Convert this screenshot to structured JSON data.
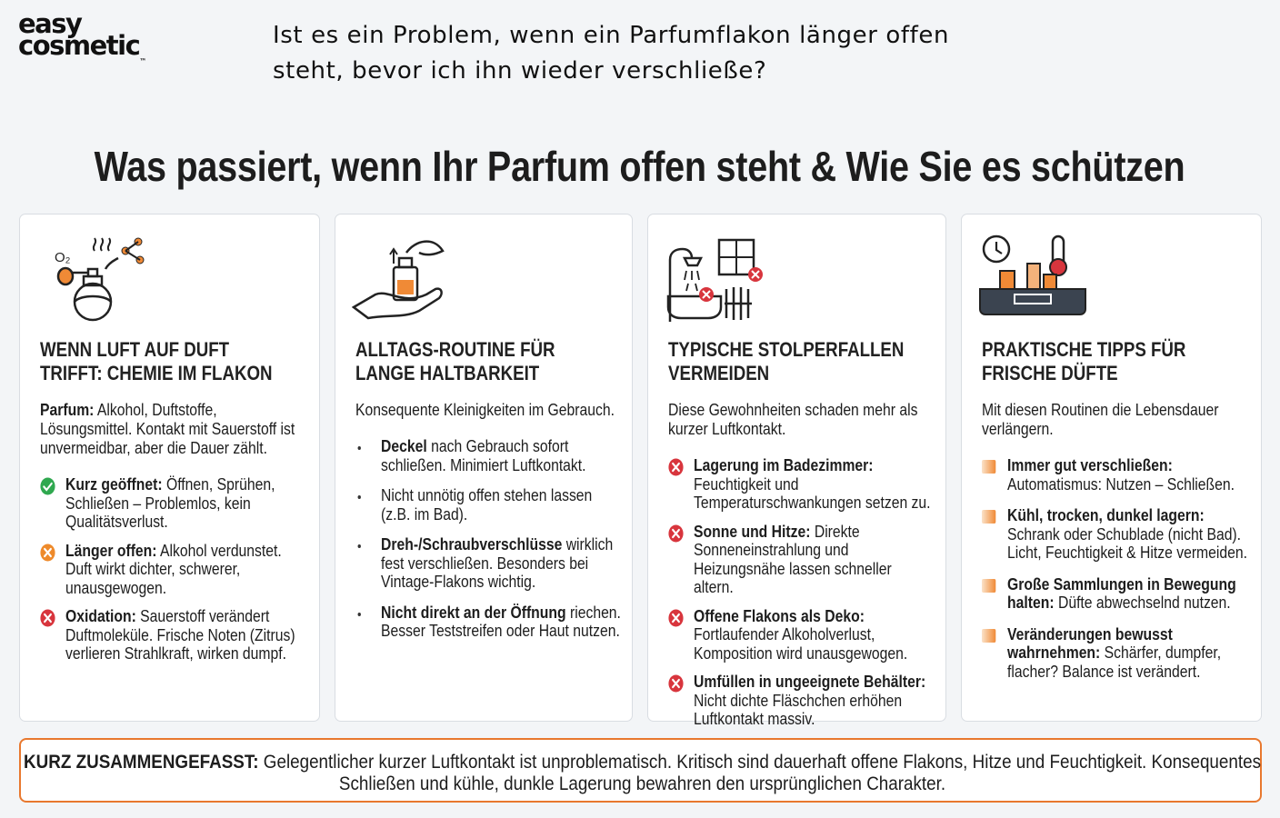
{
  "logo": {
    "line1": "easy",
    "line2": "cosmetic",
    "tm": "™"
  },
  "question": [
    "Ist es ein Problem, wenn ein Parfumflakon länger offen",
    "steht, bevor ich ihn wieder verschließe?"
  ],
  "title": "Was passiert, wenn Ihr Parfum offen steht & Wie Sie es schützen",
  "cards": [
    {
      "icon_label": "O₂",
      "heading": [
        "WENN LUFT AUF DUFT",
        "TRIFFT: CHEMIE IM FLAKON"
      ],
      "intro": {
        "bold": "Parfum:",
        "text": "Alkohol, Duftstoffe, Lösungsmittel. Kontakt mit Sauerstoff ist unvermeidbar, aber die Dauer zählt."
      },
      "items": [
        {
          "bold": "Kurz geöffnet:",
          "text": "Öffnen, Sprühen, Schließen – Problemlos, kein Qualitätsverlust."
        },
        {
          "bold": "Länger offen:",
          "text": "Alkohol verdunstet. Duft wirkt dichter, schwerer, unausgewogen."
        },
        {
          "bold": "Oxidation:",
          "text": "Sauerstoff verändert Duftmoleküle. Frische Noten (Zitrus) verlieren Strahlkraft, wirken dumpf."
        }
      ]
    },
    {
      "heading": [
        "ALLTAGS-ROUTINE FÜR",
        "LANGE HALTBARKEIT"
      ],
      "intro": {
        "text": "Konsequente Kleinigkeiten im Gebrauch."
      },
      "items": [
        {
          "bold": "Deckel",
          "text": "nach Gebrauch sofort schließen. Minimiert Luftkontakt."
        },
        {
          "text": "Nicht unnötig offen stehen lassen (z.B. im Bad)."
        },
        {
          "bold": "Dreh-/Schraubverschlüsse",
          "text": "wirklich fest verschließen. Besonders bei Vintage-Flakons wichtig."
        },
        {
          "bold": "Nicht direkt an der Öffnung",
          "text": "riechen. Besser Teststreifen oder Haut nutzen."
        }
      ]
    },
    {
      "heading": [
        "TYPISCHE STOLPERFALLEN",
        "VERMEIDEN"
      ],
      "intro": {
        "text": "Diese Gewohnheiten schaden mehr als kurzer Luftkontakt."
      },
      "items": [
        {
          "bold": "Lagerung im Badezimmer:",
          "text": "Feuchtigkeit und Temperaturschwankungen setzen zu."
        },
        {
          "bold": "Sonne und Hitze:",
          "text": "Direkte Sonneneinstrahlung und Heizungsnähe lassen schneller altern."
        },
        {
          "bold": "Offene Flakons als Deko:",
          "text": "Fortlaufender Alkoholverlust, Komposition wird unausgewogen."
        },
        {
          "bold": "Umfüllen in ungeeignete Behälter:",
          "text": "Nicht dichte Fläschchen erhöhen Luftkontakt massiv."
        }
      ]
    },
    {
      "heading": [
        "PRAKTISCHE TIPPS FÜR",
        "FRISCHE DÜFTE"
      ],
      "intro": {
        "text": "Mit diesen Routinen die Lebensdauer verlängern."
      },
      "items": [
        {
          "bold": "Immer gut verschließen:",
          "text": "Automatismus: Nutzen – Schließen."
        },
        {
          "bold": "Kühl, trocken, dunkel lagern:",
          "text": "Schrank oder Schublade (nicht Bad). Licht, Feuchtigkeit & Hitze vermeiden."
        },
        {
          "bold": "Große Sammlungen in Bewegung halten:",
          "text": "Düfte abwechselnd nutzen."
        },
        {
          "bold": "Veränderungen bewusst wahrnehmen:",
          "text": "Schärfer, dumpfer, flacher? Balance ist verändert."
        }
      ]
    }
  ],
  "summary": {
    "bold": "KURZ ZUSAMMENGEFASST:",
    "text": "Gelegentlicher kurzer Luftkontakt ist unproblematisch. Kritisch sind dauerhaft offene Flakons, Hitze und Feuchtigkeit. Konsequentes Schließen und kühle, dunkle Lagerung bewahren den ursprünglichen Charakter."
  }
}
